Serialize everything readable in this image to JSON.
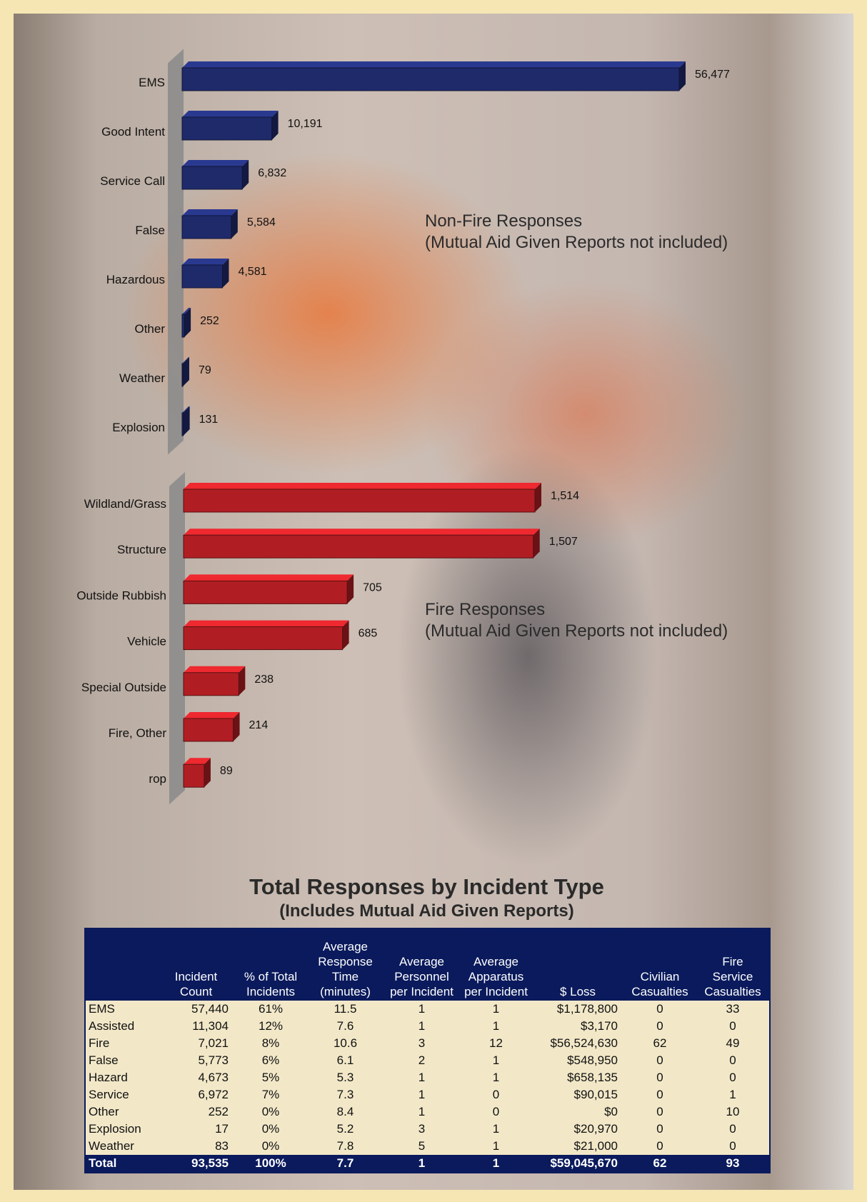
{
  "chart_data": [
    {
      "type": "bar",
      "orientation": "horizontal",
      "title": "Non-Fire Responses",
      "subtitle": "(Mutual Aid Given Reports not included)",
      "categories": [
        "EMS",
        "Good Intent",
        "Service Call",
        "False",
        "Hazardous",
        "Other",
        "Weather",
        "Explosion"
      ],
      "values": [
        56477,
        10191,
        6832,
        5584,
        4581,
        252,
        79,
        131
      ],
      "value_labels": [
        "56,477",
        "10,191",
        "6,832",
        "5,584",
        "4,581",
        "252",
        "79",
        "131"
      ],
      "color": "#1f2a6b"
    },
    {
      "type": "bar",
      "orientation": "horizontal",
      "title": "Fire Responses",
      "subtitle": "(Mutual Aid Given Reports not included)",
      "categories": [
        "Wildland/Grass",
        "Structure",
        "Outside Rubbish",
        "Vehicle",
        "Special Outside",
        "Fire, Other",
        "rop"
      ],
      "values": [
        1514,
        1507,
        705,
        685,
        238,
        214,
        89
      ],
      "value_labels": [
        "1,514",
        "1,507",
        "705",
        "685",
        "238",
        "214",
        "89"
      ],
      "color": "#b01e23"
    }
  ],
  "table": {
    "title": "Total Responses by Incident Type",
    "subtitle": "(Includes Mutual Aid Given Reports)",
    "columns": [
      "Incident\nCount",
      "% of Total\nIncidents",
      "Average\nResponse\nTime\n(minutes)",
      "Average\nPersonnel\nper Incident",
      "Average\nApparatus\nper Incident",
      "$ Loss",
      "Civilian\nCasualties",
      "Fire\nService\nCasualties"
    ],
    "rows": [
      [
        "EMS",
        "57,440",
        "61%",
        "11.5",
        "1",
        "1",
        "$1,178,800",
        "0",
        "33"
      ],
      [
        "Assisted",
        "11,304",
        "12%",
        "7.6",
        "1",
        "1",
        "$3,170",
        "0",
        "0"
      ],
      [
        "Fire",
        "7,021",
        "8%",
        "10.6",
        "3",
        "12",
        "$56,524,630",
        "62",
        "49"
      ],
      [
        "False",
        "5,773",
        "6%",
        "6.1",
        "2",
        "1",
        "$548,950",
        "0",
        "0"
      ],
      [
        "Hazard",
        "4,673",
        "5%",
        "5.3",
        "1",
        "1",
        "$658,135",
        "0",
        "0"
      ],
      [
        "Service",
        "6,972",
        "7%",
        "7.3",
        "1",
        "0",
        "$90,015",
        "0",
        "1"
      ],
      [
        "Other",
        "252",
        "0%",
        "8.4",
        "1",
        "0",
        "$0",
        "0",
        "10"
      ],
      [
        "Explosion",
        "17",
        "0%",
        "5.2",
        "3",
        "1",
        "$20,970",
        "0",
        "0"
      ],
      [
        "Weather",
        "83",
        "0%",
        "7.8",
        "5",
        "1",
        "$21,000",
        "0",
        "0"
      ]
    ],
    "total": [
      "Total",
      "93,535",
      "100%",
      "7.7",
      "1",
      "1",
      "$59,045,670",
      "62",
      "93"
    ]
  }
}
